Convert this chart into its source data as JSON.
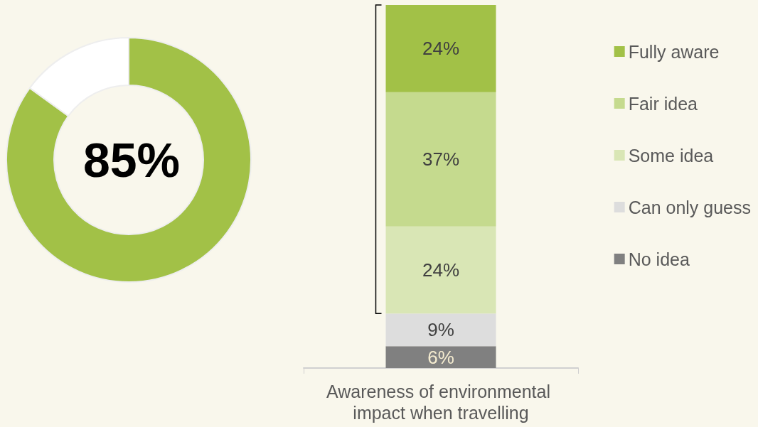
{
  "chart_data": [
    {
      "type": "donut",
      "categories": [
        null,
        null
      ],
      "values": [
        85,
        15
      ],
      "colors": [
        "#a2c147",
        "#ffffff"
      ],
      "annotations": [
        "85%"
      ]
    },
    {
      "type": "bar",
      "stacked": true,
      "categories": [
        "Awareness of environmental impact when travelling"
      ],
      "legend": "right",
      "series": [
        {
          "name": "No idea",
          "color": "#808080",
          "values": [
            6
          ],
          "value_labels": [
            "6%"
          ]
        },
        {
          "name": "Can only guess",
          "color": "#dddddd",
          "values": [
            9
          ],
          "value_labels": [
            "9%"
          ]
        },
        {
          "name": "Some idea",
          "color": "#d9e6b5",
          "values": [
            24
          ],
          "value_labels": [
            "24%"
          ]
        },
        {
          "name": "Fair idea",
          "color": "#c5da8e",
          "values": [
            37
          ],
          "value_labels": [
            "37%"
          ]
        },
        {
          "name": "Fully aware",
          "color": "#a2c147",
          "values": [
            24
          ],
          "value_labels": [
            "24%"
          ]
        }
      ]
    }
  ]
}
